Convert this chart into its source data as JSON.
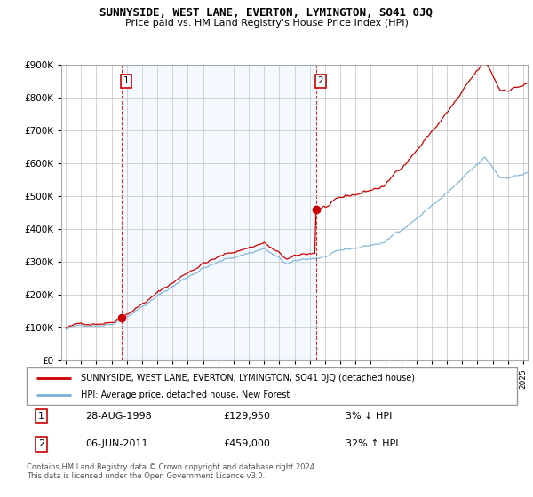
{
  "title": "SUNNYSIDE, WEST LANE, EVERTON, LYMINGTON, SO41 0JQ",
  "subtitle": "Price paid vs. HM Land Registry's House Price Index (HPI)",
  "legend_line1": "SUNNYSIDE, WEST LANE, EVERTON, LYMINGTON, SO41 0JQ (detached house)",
  "legend_line2": "HPI: Average price, detached house, New Forest",
  "annotation1_date": "28-AUG-1998",
  "annotation1_price": "£129,950",
  "annotation1_hpi": "3% ↓ HPI",
  "annotation2_date": "06-JUN-2011",
  "annotation2_price": "£459,000",
  "annotation2_hpi": "32% ↑ HPI",
  "footer": "Contains HM Land Registry data © Crown copyright and database right 2024.\nThis data is licensed under the Open Government Licence v3.0.",
  "sale_color": "#cc0000",
  "hpi_color": "#7ab0d4",
  "shade_color": "#ddeeff",
  "background_color": "#ffffff",
  "grid_color": "#cccccc",
  "ylim": [
    0,
    900000
  ],
  "yticks": [
    0,
    100000,
    200000,
    300000,
    400000,
    500000,
    600000,
    700000,
    800000,
    900000
  ],
  "sale1_x": 1998.65,
  "sale1_y": 129950,
  "sale2_x": 2011.43,
  "sale2_y": 459000,
  "xmin": 1995,
  "xmax": 2025
}
